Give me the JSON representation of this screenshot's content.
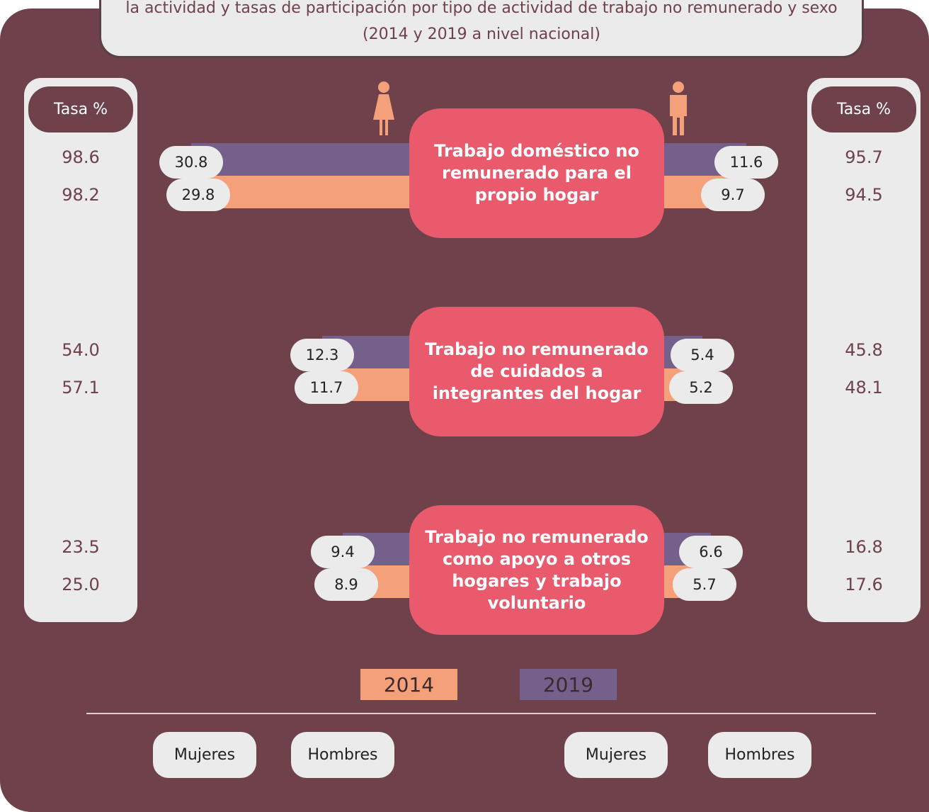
{
  "chart_data": {
    "type": "butterfly",
    "title": "la actividad y tasas de participación por tipo de actividad de trabajo no remunerado y sexo (2014 y 2019 a nivel nacional)",
    "rate_header": "Tasa %",
    "categories": [
      "Trabajo doméstico no remunerado para el propio hogar",
      "Trabajo no remunerado de cuidados a integrantes del hogar",
      "Trabajo no remunerado como apoyo a otros hogares y trabajo voluntario"
    ],
    "series": [
      {
        "name": "2014",
        "color": "#f4a07a",
        "women": [
          29.8,
          11.7,
          8.9
        ],
        "men": [
          9.7,
          5.2,
          5.7
        ],
        "women_rate": [
          98.2,
          57.1,
          25
        ],
        "women_rate_labels": [
          "98.2",
          "57.1",
          "25.0"
        ],
        "men_rate": [
          94.5,
          48.1,
          17.6
        ],
        "men_rate_labels": [
          "94.5",
          "48.1",
          "17.6"
        ]
      },
      {
        "name": "2019",
        "color": "#74608a",
        "women": [
          30.8,
          12.3,
          9.4
        ],
        "men": [
          11.6,
          5.4,
          6.6
        ],
        "women_rate": [
          98.6,
          54,
          23.5
        ],
        "women_rate_labels": [
          "98.6",
          "54.0",
          "23.5"
        ],
        "men_rate": [
          95.7,
          45.8,
          16.8
        ],
        "men_rate_labels": [
          "95.7",
          "45.8",
          "16.8"
        ]
      }
    ],
    "buttons": [
      "Mujeres",
      "Hombres",
      "Mujeres",
      "Hombres"
    ]
  }
}
